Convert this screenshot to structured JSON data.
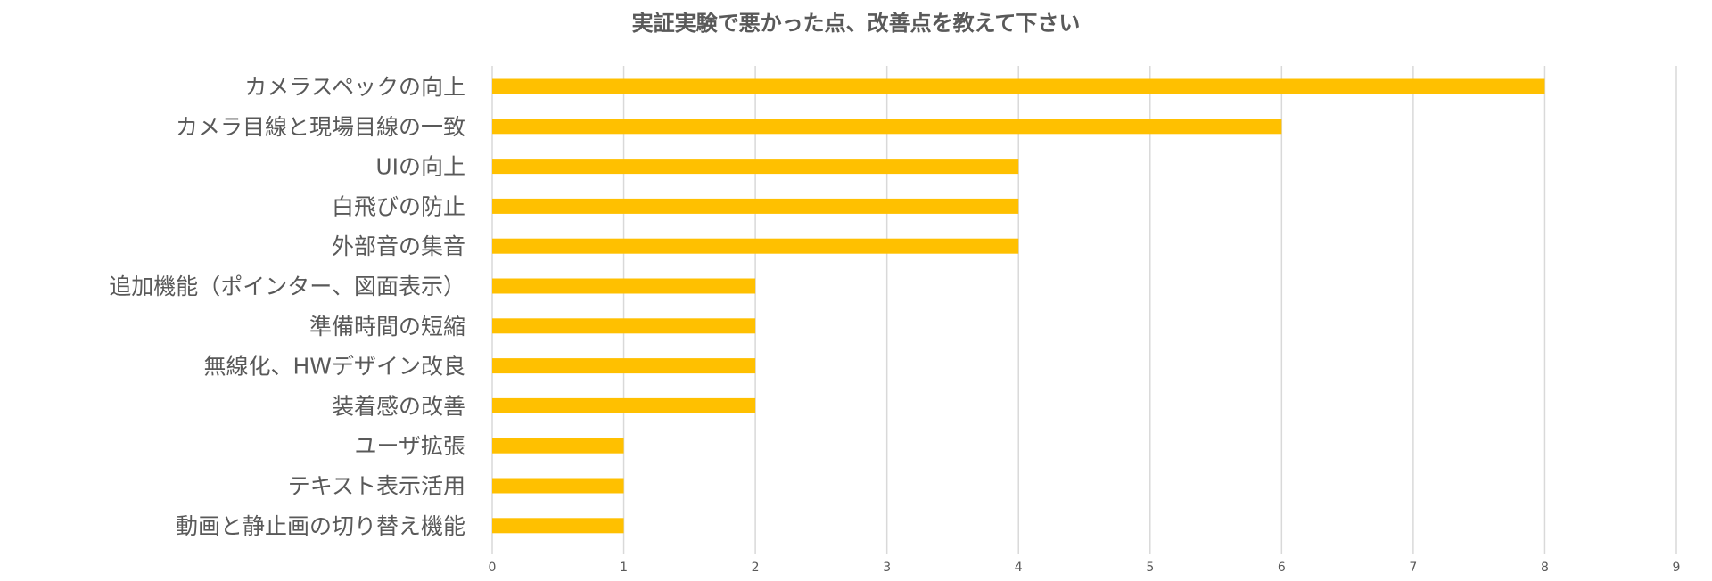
{
  "chart_data": {
    "type": "bar",
    "orientation": "horizontal",
    "title": "実証実験で悪かった点、改善点を教えて下さい",
    "categories": [
      "カメラスペックの向上",
      "カメラ目線と現場目線の一致",
      "UIの向上",
      "白飛びの防止",
      "外部音の集音",
      "追加機能（ポインター、図面表示）",
      "準備時間の短縮",
      "無線化、HWデザイン改良",
      "装着感の改善",
      "ユーザ拡張",
      "テキスト表示活用",
      "動画と静止画の切り替え機能"
    ],
    "values": [
      8,
      6,
      4,
      4,
      4,
      2,
      2,
      2,
      2,
      1,
      1,
      1
    ],
    "xlim": [
      0,
      9
    ],
    "xticks": [
      0,
      1,
      2,
      3,
      4,
      5,
      6,
      7,
      8,
      9
    ],
    "grid": "vertical",
    "legend": "none",
    "bar_color": "#FFC000"
  }
}
